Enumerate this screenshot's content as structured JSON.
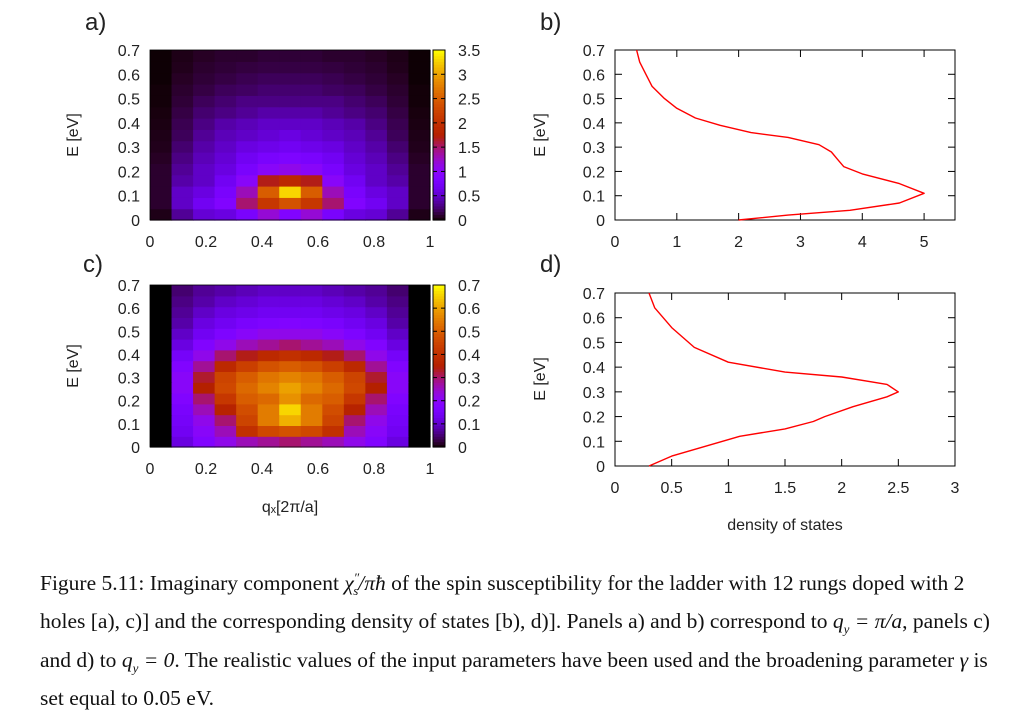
{
  "chart_data": [
    {
      "panel": "a)",
      "type": "heatmap",
      "xlabel": "",
      "ylabel": "E [eV]",
      "xlim": [
        0,
        1
      ],
      "ylim": [
        0,
        0.7
      ],
      "x_ticks": [
        "0",
        "0.2",
        "0.4",
        "0.6",
        "0.8",
        "1"
      ],
      "y_ticks": [
        "0",
        "0.1",
        "0.2",
        "0.3",
        "0.4",
        "0.5",
        "0.6",
        "0.7"
      ],
      "colorbar": {
        "range": [
          0,
          3.5
        ],
        "ticks": [
          "0",
          "0.5",
          "1",
          "1.5",
          "2",
          "2.5",
          "3",
          "3.5"
        ]
      },
      "columns_qx": [
        0,
        0.0833,
        0.1667,
        0.25,
        0.3333,
        0.4167,
        0.5,
        0.5833,
        0.6667,
        0.75,
        0.8333,
        0.9167,
        1
      ],
      "rows_E": [
        0.0,
        0.05,
        0.1,
        0.15,
        0.2,
        0.25,
        0.3,
        0.35,
        0.4,
        0.45,
        0.5,
        0.55,
        0.6,
        0.65,
        0.7
      ],
      "values": [
        [
          0.05,
          0.35,
          0.55,
          0.6,
          0.8,
          1.2,
          0.9,
          1.2,
          0.8,
          0.6,
          0.55,
          0.35,
          0.05
        ],
        [
          0.1,
          0.5,
          0.7,
          0.9,
          1.5,
          2.1,
          2.4,
          2.1,
          1.5,
          0.9,
          0.7,
          0.5,
          0.1
        ],
        [
          0.1,
          0.5,
          0.6,
          0.8,
          1.3,
          2.5,
          3.3,
          2.5,
          1.3,
          0.8,
          0.6,
          0.5,
          0.1
        ],
        [
          0.1,
          0.4,
          0.5,
          0.7,
          1.0,
          1.7,
          1.9,
          1.7,
          1.0,
          0.7,
          0.5,
          0.4,
          0.1
        ],
        [
          0.1,
          0.35,
          0.5,
          0.6,
          0.8,
          1.0,
          1.1,
          1.0,
          0.8,
          0.6,
          0.5,
          0.35,
          0.1
        ],
        [
          0.08,
          0.3,
          0.45,
          0.55,
          0.7,
          0.8,
          0.85,
          0.8,
          0.7,
          0.55,
          0.45,
          0.3,
          0.08
        ],
        [
          0.06,
          0.25,
          0.4,
          0.5,
          0.6,
          0.65,
          0.7,
          0.65,
          0.6,
          0.5,
          0.4,
          0.25,
          0.06
        ],
        [
          0.05,
          0.2,
          0.35,
          0.45,
          0.5,
          0.55,
          0.6,
          0.55,
          0.5,
          0.45,
          0.35,
          0.2,
          0.05
        ],
        [
          0.04,
          0.18,
          0.3,
          0.4,
          0.45,
          0.5,
          0.5,
          0.5,
          0.45,
          0.4,
          0.3,
          0.18,
          0.04
        ],
        [
          0.03,
          0.15,
          0.25,
          0.3,
          0.35,
          0.4,
          0.4,
          0.4,
          0.35,
          0.3,
          0.25,
          0.15,
          0.03
        ],
        [
          0.02,
          0.12,
          0.2,
          0.25,
          0.3,
          0.3,
          0.3,
          0.3,
          0.3,
          0.25,
          0.2,
          0.12,
          0.02
        ],
        [
          0.02,
          0.1,
          0.15,
          0.2,
          0.22,
          0.25,
          0.25,
          0.25,
          0.22,
          0.2,
          0.15,
          0.1,
          0.02
        ],
        [
          0.01,
          0.08,
          0.12,
          0.15,
          0.18,
          0.2,
          0.2,
          0.2,
          0.18,
          0.15,
          0.12,
          0.08,
          0.01
        ],
        [
          0.01,
          0.06,
          0.1,
          0.12,
          0.14,
          0.15,
          0.15,
          0.15,
          0.14,
          0.12,
          0.1,
          0.06,
          0.01
        ],
        [
          0.01,
          0.05,
          0.08,
          0.1,
          0.1,
          0.12,
          0.12,
          0.12,
          0.1,
          0.1,
          0.08,
          0.05,
          0.01
        ]
      ]
    },
    {
      "panel": "b)",
      "type": "line",
      "xlabel": "",
      "ylabel": "E [eV]",
      "xlim": [
        0,
        5.5
      ],
      "ylim": [
        0,
        0.7
      ],
      "x_ticks": [
        "0",
        "1",
        "2",
        "3",
        "4",
        "5"
      ],
      "y_ticks": [
        "0",
        "0.1",
        "0.2",
        "0.3",
        "0.4",
        "0.5",
        "0.6",
        "0.7"
      ],
      "color": "#ff0000",
      "x": [
        2.0,
        2.8,
        3.8,
        4.6,
        5.0,
        4.6,
        4.0,
        3.7,
        3.6,
        3.5,
        3.3,
        2.8,
        2.2,
        1.7,
        1.3,
        1.0,
        0.8,
        0.6,
        0.5,
        0.4,
        0.35
      ],
      "y": [
        0.0,
        0.02,
        0.04,
        0.07,
        0.11,
        0.15,
        0.19,
        0.22,
        0.25,
        0.28,
        0.31,
        0.34,
        0.36,
        0.39,
        0.42,
        0.46,
        0.5,
        0.55,
        0.6,
        0.65,
        0.7
      ]
    },
    {
      "panel": "c)",
      "type": "heatmap",
      "xlabel": "qₓ[2π/a]",
      "ylabel": "E [eV]",
      "xlim": [
        0,
        1
      ],
      "ylim": [
        0,
        0.7
      ],
      "x_ticks": [
        "0",
        "0.2",
        "0.4",
        "0.6",
        "0.8",
        "1"
      ],
      "y_ticks": [
        "0",
        "0.1",
        "0.2",
        "0.3",
        "0.4",
        "0.5",
        "0.6",
        "0.7"
      ],
      "colorbar": {
        "range": [
          0,
          0.7
        ],
        "ticks": [
          "0",
          "0.1",
          "0.2",
          "0.3",
          "0.4",
          "0.5",
          "0.6",
          "0.7"
        ]
      },
      "columns_qx": [
        0,
        0.0833,
        0.1667,
        0.25,
        0.3333,
        0.4167,
        0.5,
        0.5833,
        0.6667,
        0.75,
        0.8333,
        0.9167,
        1
      ],
      "rows_E": [
        0.0,
        0.05,
        0.1,
        0.15,
        0.2,
        0.25,
        0.3,
        0.35,
        0.4,
        0.45,
        0.5,
        0.55,
        0.6,
        0.65,
        0.7
      ],
      "values": [
        [
          0.0,
          0.12,
          0.18,
          0.22,
          0.26,
          0.28,
          0.3,
          0.28,
          0.26,
          0.22,
          0.18,
          0.12,
          0.0
        ],
        [
          0.0,
          0.14,
          0.2,
          0.26,
          0.4,
          0.46,
          0.48,
          0.46,
          0.4,
          0.26,
          0.2,
          0.14,
          0.0
        ],
        [
          0.0,
          0.15,
          0.22,
          0.3,
          0.45,
          0.55,
          0.62,
          0.55,
          0.45,
          0.3,
          0.22,
          0.15,
          0.0
        ],
        [
          0.0,
          0.16,
          0.26,
          0.36,
          0.47,
          0.55,
          0.66,
          0.55,
          0.47,
          0.36,
          0.26,
          0.16,
          0.0
        ],
        [
          0.0,
          0.18,
          0.3,
          0.42,
          0.5,
          0.52,
          0.58,
          0.52,
          0.5,
          0.42,
          0.3,
          0.18,
          0.0
        ],
        [
          0.0,
          0.2,
          0.35,
          0.46,
          0.52,
          0.56,
          0.6,
          0.56,
          0.52,
          0.46,
          0.35,
          0.2,
          0.0
        ],
        [
          0.0,
          0.2,
          0.33,
          0.45,
          0.5,
          0.54,
          0.56,
          0.54,
          0.5,
          0.45,
          0.33,
          0.2,
          0.0
        ],
        [
          0.0,
          0.18,
          0.28,
          0.38,
          0.44,
          0.48,
          0.5,
          0.48,
          0.44,
          0.38,
          0.28,
          0.18,
          0.0
        ],
        [
          0.0,
          0.15,
          0.22,
          0.3,
          0.34,
          0.38,
          0.4,
          0.38,
          0.34,
          0.3,
          0.22,
          0.15,
          0.0
        ],
        [
          0.0,
          0.12,
          0.18,
          0.22,
          0.26,
          0.28,
          0.3,
          0.28,
          0.26,
          0.22,
          0.18,
          0.12,
          0.0
        ],
        [
          0.0,
          0.1,
          0.14,
          0.17,
          0.2,
          0.22,
          0.22,
          0.22,
          0.2,
          0.17,
          0.14,
          0.1,
          0.0
        ],
        [
          0.0,
          0.08,
          0.12,
          0.14,
          0.16,
          0.17,
          0.18,
          0.17,
          0.16,
          0.14,
          0.12,
          0.08,
          0.0
        ],
        [
          0.0,
          0.07,
          0.1,
          0.12,
          0.13,
          0.14,
          0.14,
          0.14,
          0.13,
          0.12,
          0.1,
          0.07,
          0.0
        ],
        [
          0.0,
          0.06,
          0.08,
          0.1,
          0.11,
          0.12,
          0.12,
          0.12,
          0.11,
          0.1,
          0.08,
          0.06,
          0.0
        ],
        [
          0.0,
          0.05,
          0.07,
          0.08,
          0.09,
          0.1,
          0.1,
          0.1,
          0.09,
          0.08,
          0.07,
          0.05,
          0.0
        ]
      ]
    },
    {
      "panel": "d)",
      "type": "line",
      "xlabel": "density of states",
      "ylabel": "E [eV]",
      "xlim": [
        0,
        3
      ],
      "ylim": [
        0,
        0.7
      ],
      "x_ticks": [
        "0",
        "0.5",
        "1",
        "1.5",
        "2",
        "2.5",
        "3"
      ],
      "y_ticks": [
        "0",
        "0.1",
        "0.2",
        "0.3",
        "0.4",
        "0.5",
        "0.6",
        "0.7"
      ],
      "color": "#ff0000",
      "x": [
        0.3,
        0.5,
        0.8,
        1.1,
        1.5,
        1.75,
        1.85,
        2.1,
        2.4,
        2.5,
        2.4,
        2.0,
        1.5,
        1.0,
        0.7,
        0.5,
        0.35,
        0.3
      ],
      "y": [
        0.0,
        0.04,
        0.08,
        0.12,
        0.15,
        0.18,
        0.2,
        0.24,
        0.28,
        0.3,
        0.33,
        0.36,
        0.38,
        0.42,
        0.48,
        0.56,
        0.64,
        0.7
      ]
    }
  ],
  "caption": {
    "figure_label": "Figure 5.11:",
    "text_a": "Imaginary component",
    "symbol_chi": "χ",
    "symbol_sup": "″",
    "symbol_sub": "s",
    "symbol_rest": "/πħ",
    "text_b": "of the spin susceptibility for the ladder with 12 rungs doped with 2 holes [a), c)] and the corresponding density of states [b), d)]. Panels a) and b) correspond to",
    "qy_pi": "q",
    "qy_pi_sub": "y",
    "qy_pi_eq": "= π/a",
    "text_c": ", panels c) and d) to",
    "qy_zero": "q",
    "qy_zero_sub": "y",
    "qy_zero_eq": "= 0",
    "text_d": ". The realistic values of the input parameters have been used and the broadening parameter",
    "gamma": "γ",
    "text_e": "is set equal to 0.05 eV."
  }
}
